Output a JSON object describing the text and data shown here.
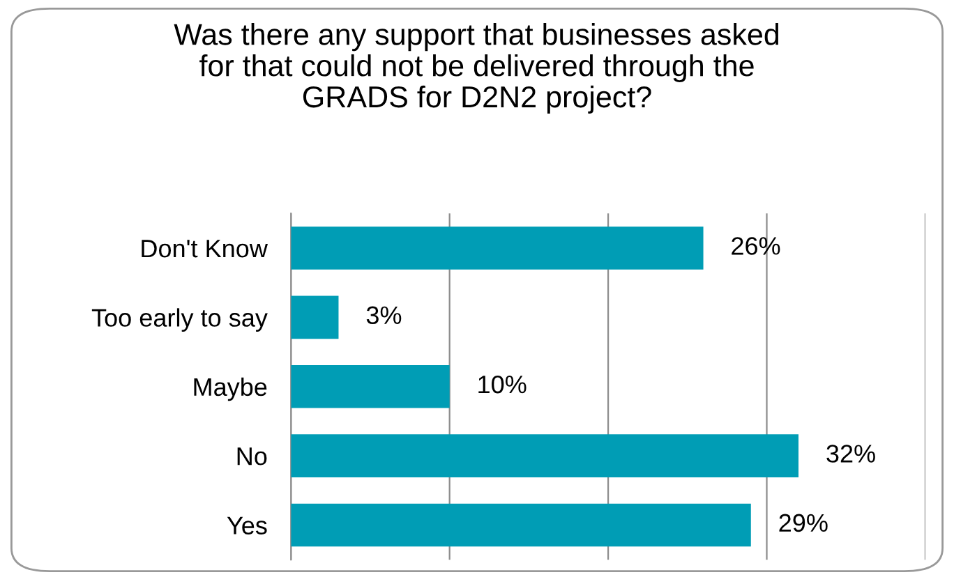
{
  "chart_data": {
    "type": "bar",
    "orientation": "horizontal",
    "title": "Was there any support that businesses asked\nfor that could not be delivered through the\nGRADS for D2N2 project?",
    "categories": [
      "Don't Know",
      "Too early to say",
      "Maybe",
      "No",
      "Yes"
    ],
    "values": [
      26,
      3,
      10,
      32,
      29
    ],
    "value_labels": [
      "26%",
      "3%",
      "10%",
      "32%",
      "29%"
    ],
    "color": "#009db5",
    "xlim": [
      0,
      40
    ],
    "xticks": [
      {
        "value": 0,
        "label": null
      },
      {
        "value": 10,
        "label": null
      },
      {
        "value": 20,
        "label": null
      },
      {
        "value": 30,
        "label": null
      },
      {
        "value": 40,
        "label": null
      }
    ],
    "grid": "x",
    "tick_labels": "y",
    "legend": false
  }
}
